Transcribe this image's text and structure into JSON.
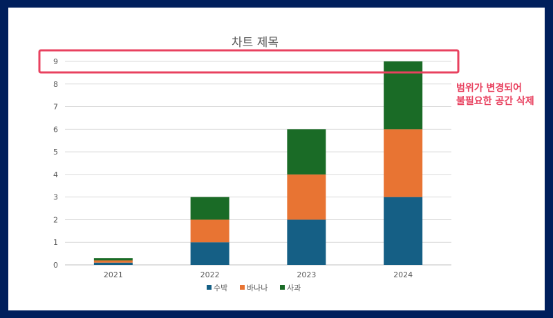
{
  "chart_data": {
    "type": "bar",
    "stacked": true,
    "title": "차트 제목",
    "categories": [
      "2021",
      "2022",
      "2023",
      "2024"
    ],
    "series": [
      {
        "name": "수박",
        "values": [
          0.1,
          1,
          2,
          3
        ],
        "color": "#155f85"
      },
      {
        "name": "바나나",
        "values": [
          0.1,
          1,
          2,
          3
        ],
        "color": "#e87433"
      },
      {
        "name": "사과",
        "values": [
          0.1,
          1,
          2,
          3
        ],
        "color": "#1a6b26"
      }
    ],
    "ylim": [
      0,
      9
    ],
    "yticks": [
      0,
      1,
      2,
      3,
      4,
      5,
      6,
      7,
      8,
      9
    ],
    "grid": true,
    "legend_position": "bottom"
  },
  "annotation": {
    "lines": [
      "범위가 변경되어",
      "불필요한 공간 삭제"
    ],
    "color": "#e8415f"
  }
}
